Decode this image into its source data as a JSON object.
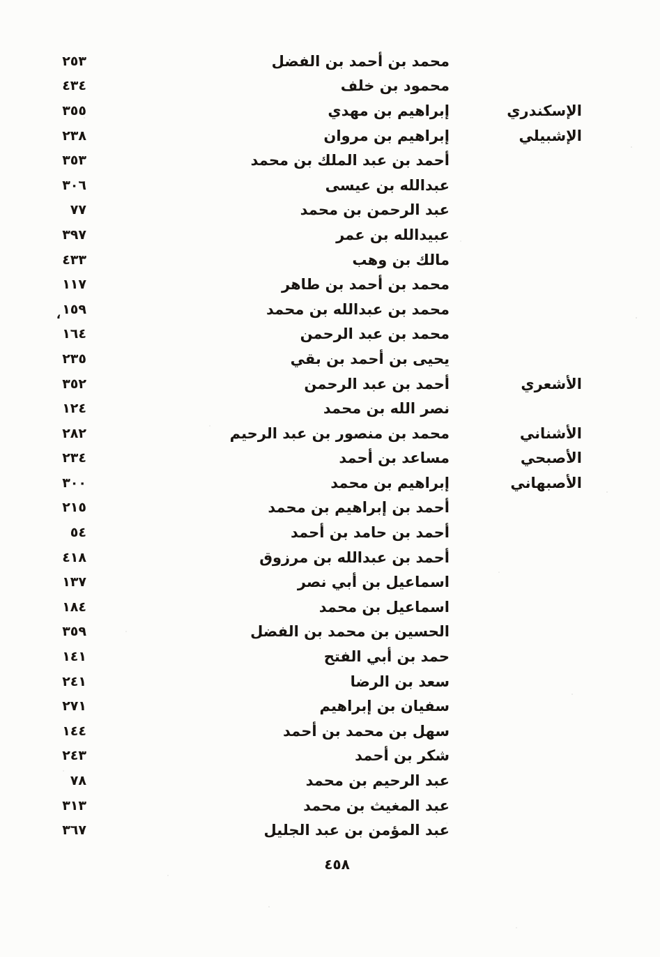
{
  "page": {
    "page_number": "٤٥٨"
  },
  "colors": {
    "paper": "#fcfcfa",
    "ink": "#181410"
  },
  "index": {
    "entries": [
      {
        "nisba": "",
        "name": "محمد بن أحمد بن الفضل",
        "num": "٢٥٣"
      },
      {
        "nisba": "",
        "name": "محمود بن خلف",
        "num": "٤٣٤"
      },
      {
        "nisba": "الإسكندري",
        "name": "إبراهيم بن مهدي",
        "num": "٣٥٥"
      },
      {
        "nisba": "الإشبيلي",
        "name": "إبراهيم بن مروان",
        "num": "٢٣٨"
      },
      {
        "nisba": "",
        "name": "أحمد بن عبد الملك بن محمد",
        "num": "٣٥٣"
      },
      {
        "nisba": "",
        "name": "عبدالله بن عيسى",
        "num": "٣٠٦"
      },
      {
        "nisba": "",
        "name": "عبد الرحمن بن محمد",
        "num": "٧٧"
      },
      {
        "nisba": "",
        "name": "عبيدالله بن عمر",
        "num": "٣٩٧"
      },
      {
        "nisba": "",
        "name": "مالك بن وهب",
        "num": "٤٣٣"
      },
      {
        "nisba": "",
        "name": "محمد بن أحمد بن طاهر",
        "num": "١١٧"
      },
      {
        "nisba": "",
        "name": "محمد بن عبدالله بن محمد",
        "num": "١٥٩",
        "mark": "،"
      },
      {
        "nisba": "",
        "name": "محمد بن عبد الرحمن",
        "num": "١٦٤"
      },
      {
        "nisba": "",
        "name": "يحيى بن أحمد بن بقي",
        "num": "٢٣٥"
      },
      {
        "nisba": "الأشعري",
        "name": "أحمد بن عبد الرحمن",
        "num": "٣٥٢"
      },
      {
        "nisba": "",
        "name": "نصر الله بن محمد",
        "num": "١٢٤"
      },
      {
        "nisba": "الأشناني",
        "name": "محمد بن منصور بن عبد الرحيم",
        "num": "٢٨٢"
      },
      {
        "nisba": "الأصبحي",
        "name": "مساعد بن أحمد",
        "num": "٢٣٤"
      },
      {
        "nisba": "الأصبهاني",
        "name": "إبراهيم بن محمد",
        "num": "٣٠٠"
      },
      {
        "nisba": "",
        "name": "أحمد بن إبراهيم بن محمد",
        "num": "٢١٥"
      },
      {
        "nisba": "",
        "name": "أحمد بن حامد بن أحمد",
        "num": "٥٤"
      },
      {
        "nisba": "",
        "name": "أحمد بن عبدالله بن مرزوق",
        "num": "٤١٨"
      },
      {
        "nisba": "",
        "name": "اسماعيل بن أبي نصر",
        "num": "١٣٧"
      },
      {
        "nisba": "",
        "name": "اسماعيل بن محمد",
        "num": "١٨٤"
      },
      {
        "nisba": "",
        "name": "الحسين بن محمد بن الفضل",
        "num": "٣٥٩"
      },
      {
        "nisba": "",
        "name": "حمد بن أبي الفتح",
        "num": "١٤١"
      },
      {
        "nisba": "",
        "name": "سعد بن الرضا",
        "num": "٢٤١"
      },
      {
        "nisba": "",
        "name": "سفيان بن إبراهيم",
        "num": "٢٧١"
      },
      {
        "nisba": "",
        "name": "سهل بن محمد بن أحمد",
        "num": "١٤٤"
      },
      {
        "nisba": "",
        "name": "شكر بن أحمد",
        "num": "٢٤٣"
      },
      {
        "nisba": "",
        "name": "عبد الرحيم بن محمد",
        "num": "٧٨"
      },
      {
        "nisba": "",
        "name": "عبد المغيث بن محمد",
        "num": "٣١٣"
      },
      {
        "nisba": "",
        "name": "عبد المؤمن بن عبد الجليل",
        "num": "٣٦٧"
      }
    ]
  }
}
